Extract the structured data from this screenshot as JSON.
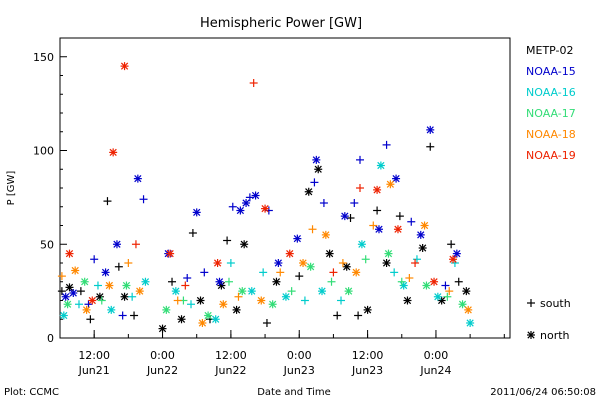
{
  "chart_data": {
    "type": "scatter",
    "title": "Hemispheric Power [GW]",
    "ylabel": "P [GW]",
    "xlabel": "Date and Time",
    "ylim": [
      0,
      160
    ],
    "yticks": [
      0,
      50,
      100,
      150
    ],
    "xlim": [
      "2011-06-21 06:00",
      "2011-06-24 13:00"
    ],
    "xticks": [
      {
        "t": "2011-06-21 12:00",
        "time": "12:00",
        "date": "Jun21"
      },
      {
        "t": "2011-06-22 00:00",
        "time": "0:00",
        "date": "Jun22"
      },
      {
        "t": "2011-06-22 12:00",
        "time": "12:00",
        "date": "Jun22"
      },
      {
        "t": "2011-06-23 00:00",
        "time": "0:00",
        "date": "Jun23"
      },
      {
        "t": "2011-06-23 12:00",
        "time": "12:00",
        "date": "Jun23"
      },
      {
        "t": "2011-06-24 00:00",
        "time": "0:00",
        "date": "Jun24"
      }
    ],
    "marker_legend": [
      {
        "symbol": "+",
        "label": "south"
      },
      {
        "symbol": "*",
        "label": "north"
      }
    ],
    "series": [
      {
        "name": "METP-02",
        "color": "#000000",
        "points": [
          [
            "2011-06-21 06:20",
            25,
            "+"
          ],
          [
            "2011-06-21 07:40",
            27,
            "*"
          ],
          [
            "2011-06-21 09:40",
            25,
            "+"
          ],
          [
            "2011-06-21 11:20",
            10,
            "+"
          ],
          [
            "2011-06-21 13:00",
            22,
            "*"
          ],
          [
            "2011-06-21 14:20",
            73,
            "+"
          ],
          [
            "2011-06-21 16:20",
            38,
            "+"
          ],
          [
            "2011-06-21 17:20",
            22,
            "*"
          ],
          [
            "2011-06-21 19:00",
            12,
            "+"
          ],
          [
            "2011-06-22 00:00",
            5,
            "*"
          ],
          [
            "2011-06-22 01:40",
            30,
            "+"
          ],
          [
            "2011-06-22 03:20",
            10,
            "*"
          ],
          [
            "2011-06-22 05:20",
            56,
            "+"
          ],
          [
            "2011-06-22 06:40",
            20,
            "*"
          ],
          [
            "2011-06-22 08:20",
            10,
            "+"
          ],
          [
            "2011-06-22 10:20",
            28,
            "*"
          ],
          [
            "2011-06-22 11:20",
            52,
            "+"
          ],
          [
            "2011-06-22 13:00",
            15,
            "*"
          ],
          [
            "2011-06-22 14:20",
            50,
            "*"
          ],
          [
            "2011-06-22 18:20",
            8,
            "+"
          ],
          [
            "2011-06-22 20:00",
            30,
            "*"
          ],
          [
            "2011-06-23 00:00",
            33,
            "+"
          ],
          [
            "2011-06-23 01:40",
            78,
            "*"
          ],
          [
            "2011-06-23 03:20",
            90,
            "*"
          ],
          [
            "2011-06-23 05:20",
            45,
            "*"
          ],
          [
            "2011-06-23 06:40",
            12,
            "+"
          ],
          [
            "2011-06-23 08:20",
            38,
            "*"
          ],
          [
            "2011-06-23 09:00",
            64,
            "+"
          ],
          [
            "2011-06-23 10:20",
            12,
            "+"
          ],
          [
            "2011-06-23 12:00",
            15,
            "*"
          ],
          [
            "2011-06-23 13:40",
            68,
            "+"
          ],
          [
            "2011-06-23 15:20",
            40,
            "*"
          ],
          [
            "2011-06-23 17:40",
            65,
            "+"
          ],
          [
            "2011-06-23 19:00",
            20,
            "*"
          ],
          [
            "2011-06-23 21:40",
            48,
            "*"
          ],
          [
            "2011-06-23 23:00",
            102,
            "+"
          ],
          [
            "2011-06-24 01:00",
            20,
            "*"
          ],
          [
            "2011-06-24 02:40",
            50,
            "+"
          ],
          [
            "2011-06-24 04:00",
            30,
            "+"
          ],
          [
            "2011-06-24 05:20",
            25,
            "*"
          ]
        ]
      },
      {
        "name": "NOAA-15",
        "color": "#0000cc",
        "points": [
          [
            "2011-06-21 07:00",
            22,
            "*"
          ],
          [
            "2011-06-21 08:20",
            24,
            "*"
          ],
          [
            "2011-06-21 11:00",
            18,
            "+"
          ],
          [
            "2011-06-21 12:00",
            42,
            "+"
          ],
          [
            "2011-06-21 14:00",
            35,
            "*"
          ],
          [
            "2011-06-21 16:00",
            50,
            "*"
          ],
          [
            "2011-06-21 17:00",
            12,
            "+"
          ],
          [
            "2011-06-21 19:40",
            85,
            "*"
          ],
          [
            "2011-06-21 20:40",
            74,
            "+"
          ],
          [
            "2011-06-22 01:00",
            45,
            "*"
          ],
          [
            "2011-06-22 04:20",
            32,
            "+"
          ],
          [
            "2011-06-22 06:00",
            67,
            "*"
          ],
          [
            "2011-06-22 07:20",
            35,
            "+"
          ],
          [
            "2011-06-22 10:00",
            30,
            "*"
          ],
          [
            "2011-06-22 12:20",
            70,
            "+"
          ],
          [
            "2011-06-22 13:40",
            68,
            "*"
          ],
          [
            "2011-06-22 14:40",
            72,
            "*"
          ],
          [
            "2011-06-22 15:20",
            75,
            "+"
          ],
          [
            "2011-06-22 16:20",
            76,
            "*"
          ],
          [
            "2011-06-22 18:40",
            68,
            "+"
          ],
          [
            "2011-06-22 20:20",
            40,
            "*"
          ],
          [
            "2011-06-22 23:40",
            53,
            "*"
          ],
          [
            "2011-06-23 02:40",
            83,
            "+"
          ],
          [
            "2011-06-23 03:00",
            95,
            "*"
          ],
          [
            "2011-06-23 04:20",
            72,
            "+"
          ],
          [
            "2011-06-23 08:00",
            65,
            "*"
          ],
          [
            "2011-06-23 09:40",
            72,
            "+"
          ],
          [
            "2011-06-23 10:40",
            95,
            "+"
          ],
          [
            "2011-06-23 14:00",
            58,
            "*"
          ],
          [
            "2011-06-23 15:20",
            103,
            "+"
          ],
          [
            "2011-06-23 17:00",
            85,
            "*"
          ],
          [
            "2011-06-23 19:40",
            62,
            "+"
          ],
          [
            "2011-06-23 21:20",
            55,
            "*"
          ],
          [
            "2011-06-23 23:00",
            111,
            "*"
          ],
          [
            "2011-06-24 01:40",
            28,
            "+"
          ],
          [
            "2011-06-24 03:40",
            45,
            "*"
          ]
        ]
      },
      {
        "name": "NOAA-16",
        "color": "#00cccc",
        "points": [
          [
            "2011-06-21 06:40",
            12,
            "*"
          ],
          [
            "2011-06-21 09:20",
            18,
            "+"
          ],
          [
            "2011-06-21 12:40",
            28,
            "+"
          ],
          [
            "2011-06-21 15:00",
            15,
            "*"
          ],
          [
            "2011-06-21 18:40",
            22,
            "+"
          ],
          [
            "2011-06-21 21:00",
            30,
            "*"
          ],
          [
            "2011-06-22 02:20",
            25,
            "*"
          ],
          [
            "2011-06-22 05:00",
            18,
            "+"
          ],
          [
            "2011-06-22 09:20",
            10,
            "*"
          ],
          [
            "2011-06-22 12:00",
            40,
            "+"
          ],
          [
            "2011-06-22 15:40",
            25,
            "*"
          ],
          [
            "2011-06-22 17:40",
            35,
            "+"
          ],
          [
            "2011-06-22 21:40",
            22,
            "*"
          ],
          [
            "2011-06-23 01:00",
            20,
            "+"
          ],
          [
            "2011-06-23 04:00",
            25,
            "*"
          ],
          [
            "2011-06-23 07:20",
            20,
            "+"
          ],
          [
            "2011-06-23 11:00",
            50,
            "*"
          ],
          [
            "2011-06-23 14:20",
            92,
            "*"
          ],
          [
            "2011-06-23 16:40",
            35,
            "+"
          ],
          [
            "2011-06-23 18:20",
            28,
            "*"
          ],
          [
            "2011-06-23 20:40",
            42,
            "+"
          ],
          [
            "2011-06-24 00:20",
            22,
            "*"
          ],
          [
            "2011-06-24 03:20",
            40,
            "+"
          ],
          [
            "2011-06-24 06:00",
            8,
            "*"
          ]
        ]
      },
      {
        "name": "NOAA-17",
        "color": "#33dd77",
        "points": [
          [
            "2011-06-21 07:20",
            18,
            "*"
          ],
          [
            "2011-06-21 10:20",
            30,
            "*"
          ],
          [
            "2011-06-21 13:20",
            20,
            "+"
          ],
          [
            "2011-06-21 17:40",
            28,
            "*"
          ],
          [
            "2011-06-22 00:40",
            15,
            "*"
          ],
          [
            "2011-06-22 03:40",
            20,
            "+"
          ],
          [
            "2011-06-22 08:00",
            12,
            "*"
          ],
          [
            "2011-06-22 11:40",
            30,
            "+"
          ],
          [
            "2011-06-22 14:00",
            25,
            "*"
          ],
          [
            "2011-06-22 19:20",
            18,
            "*"
          ],
          [
            "2011-06-22 22:40",
            25,
            "+"
          ],
          [
            "2011-06-23 02:00",
            38,
            "*"
          ],
          [
            "2011-06-23 05:40",
            30,
            "+"
          ],
          [
            "2011-06-23 08:40",
            25,
            "*"
          ],
          [
            "2011-06-23 11:40",
            42,
            "+"
          ],
          [
            "2011-06-23 15:40",
            45,
            "*"
          ],
          [
            "2011-06-23 18:00",
            30,
            "+"
          ],
          [
            "2011-06-23 22:20",
            28,
            "*"
          ],
          [
            "2011-06-24 02:00",
            22,
            "+"
          ],
          [
            "2011-06-24 04:40",
            18,
            "*"
          ]
        ]
      },
      {
        "name": "NOAA-18",
        "color": "#ff8800",
        "points": [
          [
            "2011-06-21 06:20",
            33,
            "+"
          ],
          [
            "2011-06-21 08:40",
            36,
            "*"
          ],
          [
            "2011-06-21 10:40",
            15,
            "*"
          ],
          [
            "2011-06-21 14:40",
            28,
            "*"
          ],
          [
            "2011-06-21 18:00",
            40,
            "+"
          ],
          [
            "2011-06-21 20:00",
            25,
            "*"
          ],
          [
            "2011-06-22 02:40",
            20,
            "+"
          ],
          [
            "2011-06-22 07:00",
            8,
            "*"
          ],
          [
            "2011-06-22 10:40",
            18,
            "*"
          ],
          [
            "2011-06-22 13:20",
            22,
            "+"
          ],
          [
            "2011-06-22 17:20",
            20,
            "*"
          ],
          [
            "2011-06-22 20:40",
            35,
            "+"
          ],
          [
            "2011-06-23 00:40",
            40,
            "*"
          ],
          [
            "2011-06-23 02:20",
            58,
            "+"
          ],
          [
            "2011-06-23 04:40",
            55,
            "*"
          ],
          [
            "2011-06-23 07:40",
            40,
            "+"
          ],
          [
            "2011-06-23 10:00",
            35,
            "*"
          ],
          [
            "2011-06-23 13:00",
            60,
            "+"
          ],
          [
            "2011-06-23 16:00",
            82,
            "*"
          ],
          [
            "2011-06-23 19:20",
            32,
            "+"
          ],
          [
            "2011-06-23 22:00",
            60,
            "*"
          ],
          [
            "2011-06-24 02:20",
            25,
            "+"
          ],
          [
            "2011-06-24 05:40",
            15,
            "*"
          ]
        ]
      },
      {
        "name": "NOAA-19",
        "color": "#ee2200",
        "points": [
          [
            "2011-06-21 07:40",
            45,
            "*"
          ],
          [
            "2011-06-21 11:40",
            20,
            "*"
          ],
          [
            "2011-06-21 15:20",
            99,
            "*"
          ],
          [
            "2011-06-21 17:20",
            145,
            "*"
          ],
          [
            "2011-06-21 19:20",
            50,
            "+"
          ],
          [
            "2011-06-22 01:20",
            45,
            "*"
          ],
          [
            "2011-06-22 04:00",
            28,
            "+"
          ],
          [
            "2011-06-22 09:40",
            40,
            "*"
          ],
          [
            "2011-06-22 16:00",
            136,
            "+"
          ],
          [
            "2011-06-22 18:00",
            69,
            "*"
          ],
          [
            "2011-06-22 22:20",
            45,
            "*"
          ],
          [
            "2011-06-23 06:00",
            35,
            "+"
          ],
          [
            "2011-06-23 10:40",
            80,
            "+"
          ],
          [
            "2011-06-23 13:40",
            79,
            "*"
          ],
          [
            "2011-06-23 17:20",
            58,
            "*"
          ],
          [
            "2011-06-23 20:20",
            40,
            "+"
          ],
          [
            "2011-06-23 23:40",
            30,
            "*"
          ],
          [
            "2011-06-24 03:00",
            42,
            "*"
          ]
        ]
      }
    ]
  },
  "footer": {
    "plot_credit": "Plot: CCMC",
    "timestamp": "2011/06/24 06:50:08"
  }
}
